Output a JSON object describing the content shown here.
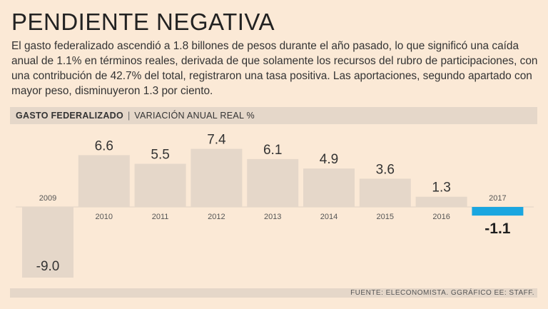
{
  "title": "PENDIENTE NEGATIVA",
  "intro": "El gasto federalizado ascendió a 1.8 billones de pesos durante el año pasado, lo que significó una caída anual de 1.1% en términos reales, derivada de que solamente los recursos del rubro de participaciones, con una contribución de 42.7% del total, registraron una tasa positiva. Las aportaciones, segundo apartado con mayor peso, disminuyeron 1.3 por ciento.",
  "header": {
    "main": "GASTO FEDERALIZADO",
    "separator": "|",
    "sub": "VARIACIÓN ANUAL REAL %"
  },
  "source": "FUENTE: ELECONOMISTA. GGRÁFICO EE: STAFF.",
  "colors": {
    "background": "#fbe9d6",
    "bar": "#e5d7c9",
    "highlight": "#1aa6e0"
  },
  "chart_data": {
    "type": "bar",
    "title": "",
    "xlabel": "",
    "ylabel": "",
    "categories": [
      "2009",
      "2010",
      "2011",
      "2012",
      "2013",
      "2014",
      "2015",
      "2016",
      "2017"
    ],
    "values": [
      -9.0,
      6.6,
      5.5,
      7.4,
      6.1,
      4.9,
      3.6,
      1.3,
      -1.1
    ],
    "value_labels": [
      "-9.0",
      "6.6",
      "5.5",
      "7.4",
      "6.1",
      "4.9",
      "3.6",
      "1.3",
      "-1.1"
    ],
    "highlight_category": "2017",
    "ylim": [
      -9.0,
      7.4
    ],
    "grid": false,
    "legend": "none"
  }
}
